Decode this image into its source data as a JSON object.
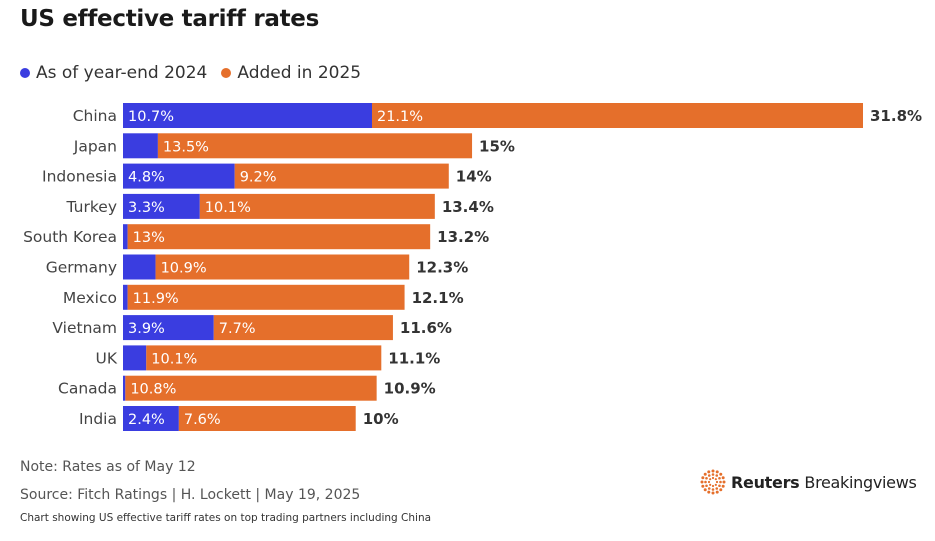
{
  "title": "US effective tariff rates",
  "legend": {
    "items": [
      {
        "label": "As of year-end 2024",
        "color": "#3a3de0"
      },
      {
        "label": "Added in 2025",
        "color": "#e56f2b"
      }
    ]
  },
  "footer": {
    "note": "Note: Rates as of May 12",
    "source": "Source: Fitch Ratings | H. Lockett | May 19, 2025",
    "description": "Chart showing US effective tariff rates on top trading partners including China",
    "brand_name": "Reuters",
    "brand_sub": "Breakingviews"
  },
  "chart_data": {
    "type": "bar",
    "orientation": "horizontal",
    "stacked": true,
    "categories": [
      "China",
      "Japan",
      "Indonesia",
      "Turkey",
      "South Korea",
      "Germany",
      "Mexico",
      "Vietnam",
      "UK",
      "Canada",
      "India"
    ],
    "series": [
      {
        "name": "As of year-end 2024",
        "color": "#3a3de0",
        "values": [
          10.7,
          1.5,
          4.8,
          3.3,
          0.2,
          1.4,
          0.2,
          3.9,
          1.0,
          0.1,
          2.4
        ],
        "labels": [
          "10.7%",
          "",
          "4.8%",
          "3.3%",
          "",
          "",
          "",
          "3.9%",
          "",
          "",
          "2.4%"
        ]
      },
      {
        "name": "Added in 2025",
        "color": "#e56f2b",
        "values": [
          21.1,
          13.5,
          9.2,
          10.1,
          13.0,
          10.9,
          11.9,
          7.7,
          10.1,
          10.8,
          7.6
        ],
        "labels": [
          "21.1%",
          "13.5%",
          "9.2%",
          "10.1%",
          "13%",
          "10.9%",
          "11.9%",
          "7.7%",
          "10.1%",
          "10.8%",
          "7.6%"
        ]
      }
    ],
    "totals": [
      "31.8%",
      "15%",
      "14%",
      "13.4%",
      "13.2%",
      "12.3%",
      "12.1%",
      "11.6%",
      "11.1%",
      "10.9%",
      "10%"
    ],
    "xlim": [
      0,
      31.8
    ],
    "grid": false
  }
}
